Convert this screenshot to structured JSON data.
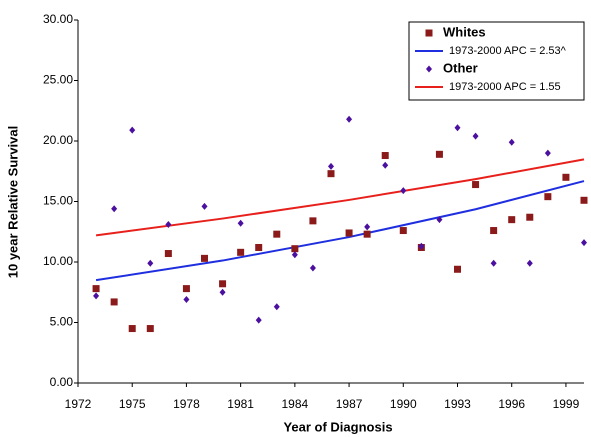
{
  "chart_data": {
    "type": "scatter",
    "x_label": "Year of Diagnosis",
    "y_label": "10 year Relative Survival",
    "x": [
      1973,
      1974,
      1975,
      1976,
      1977,
      1978,
      1979,
      1980,
      1981,
      1982,
      1983,
      1984,
      1985,
      1986,
      1987,
      1988,
      1989,
      1990,
      1991,
      1992,
      1993,
      1994,
      1995,
      1996,
      1997,
      1998,
      1999,
      2000
    ],
    "series": [
      {
        "name": "Whites",
        "color": "#8b1a1a",
        "marker": "square",
        "values": [
          7.8,
          6.7,
          4.5,
          4.5,
          10.7,
          7.8,
          10.3,
          8.2,
          10.8,
          11.2,
          12.3,
          11.1,
          13.4,
          17.3,
          12.4,
          12.3,
          18.8,
          12.6,
          11.2,
          18.9,
          9.4,
          16.4,
          12.6,
          13.5,
          13.7,
          15.4,
          17.0,
          15.1
        ]
      },
      {
        "name": "1973-2000 APC  = 2.53^",
        "color": "#1f2fe0",
        "marker": "line",
        "x": [
          1973,
          1980,
          1987,
          1994,
          2000
        ],
        "values": [
          8.5,
          10.12,
          12.06,
          14.36,
          16.69
        ]
      },
      {
        "name": "Other",
        "color": "#4b10a0",
        "marker": "diamond",
        "values": [
          7.2,
          14.4,
          20.9,
          9.9,
          13.1,
          6.9,
          14.6,
          7.5,
          13.2,
          5.2,
          6.3,
          10.6,
          9.5,
          17.9,
          21.8,
          12.9,
          18.0,
          15.9,
          11.3,
          13.5,
          21.1,
          20.4,
          9.9,
          19.9,
          9.9,
          19.0,
          null,
          11.6
        ]
      },
      {
        "name": "1973-2000 APC  = 1.55",
        "color": "#e8201c",
        "marker": "line",
        "x": [
          1973,
          1980,
          1987,
          1994,
          2000
        ],
        "values": [
          12.2,
          13.59,
          15.13,
          16.85,
          18.48
        ]
      }
    ],
    "xlim": [
      1972,
      2000
    ],
    "xticks": [
      1972,
      1975,
      1978,
      1981,
      1984,
      1987,
      1990,
      1993,
      1996,
      1999
    ],
    "ylim": [
      0,
      30
    ],
    "yticks": [
      {
        "value": 0,
        "label": "0.00"
      },
      {
        "value": 5,
        "label": "5.00"
      },
      {
        "value": 10,
        "label": "10.00"
      },
      {
        "value": 15,
        "label": "15.00"
      },
      {
        "value": 20,
        "label": "20.00"
      },
      {
        "value": 25,
        "label": "25.00"
      },
      {
        "value": 30,
        "label": "30.00"
      }
    ],
    "grid": false,
    "legend": "upper right"
  }
}
